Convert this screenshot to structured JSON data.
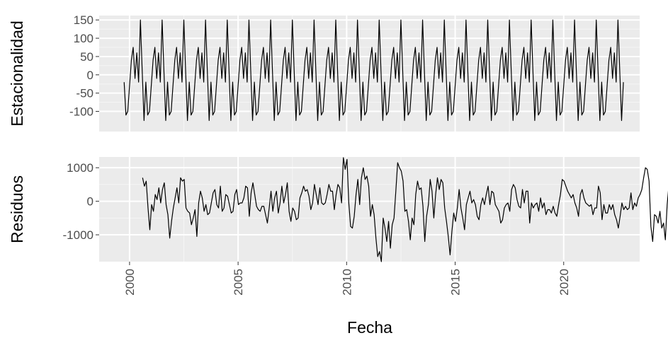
{
  "chart_data": {
    "type": "line",
    "xlabel": "Fecha",
    "xlim": [
      1998.6,
      2023.5
    ],
    "x_ticks": [
      2000,
      2005,
      2010,
      2015,
      2020
    ],
    "x_tick_labels": [
      "2000",
      "2005",
      "2010",
      "2015",
      "2020"
    ],
    "x_start": 1999.75,
    "x_step": 0.0833333,
    "grid": true,
    "panels": [
      {
        "ylabel": "Estacionalidad",
        "ylim": [
          -155,
          162
        ],
        "y_ticks": [
          150,
          100,
          50,
          0,
          -50,
          -100
        ],
        "y_tick_labels": [
          "150",
          "100",
          "50",
          "0",
          "-50",
          "-100"
        ],
        "seasonal_pattern": [
          -20,
          -110,
          -100,
          -30,
          40,
          75,
          -10,
          60,
          -20,
          150,
          10,
          -125
        ],
        "years": 23.1
      },
      {
        "ylabel": "Residuos",
        "ylim": [
          -1800,
          1320
        ],
        "y_ticks": [
          1000,
          0,
          -1000
        ],
        "y_tick_labels": [
          "1000",
          "0",
          "-1000"
        ],
        "x_start": 2000.6,
        "values": [
          700,
          450,
          600,
          -200,
          -850,
          -100,
          -300,
          200,
          50,
          400,
          -50,
          350,
          550,
          -100,
          -400,
          -1100,
          -600,
          -200,
          100,
          400,
          -50,
          700,
          600,
          650,
          -200,
          -300,
          -350,
          -700,
          -500,
          -250,
          -1050,
          -50,
          300,
          100,
          -300,
          -100,
          -400,
          -350,
          -50,
          250,
          350,
          -100,
          -200,
          450,
          -300,
          -200,
          200,
          150,
          -100,
          -350,
          -300,
          200,
          350,
          -100,
          -50,
          -50,
          100,
          450,
          400,
          -450,
          250,
          550,
          200,
          -150,
          -250,
          -300,
          -150,
          -150,
          -400,
          -650,
          -200,
          300,
          -300,
          100,
          300,
          -350,
          -50,
          450,
          -50,
          200,
          550,
          -300,
          -600,
          -200,
          -300,
          -550,
          -500,
          100,
          250,
          450,
          300,
          350,
          150,
          -250,
          -50,
          500,
          200,
          -100,
          400,
          -50,
          -100,
          -50,
          200,
          500,
          300,
          300,
          -250,
          200,
          500,
          400,
          -50,
          1300,
          950,
          1250,
          -50,
          -750,
          -800,
          -450,
          200,
          650,
          -100,
          700,
          1000,
          650,
          750,
          450,
          -450,
          -100,
          -400,
          -1100,
          -1650,
          -1500,
          -1800,
          -500,
          -800,
          -1200,
          -600,
          -1400,
          -700,
          -500,
          300,
          1150,
          1000,
          900,
          600,
          -300,
          -250,
          -600,
          -1150,
          -500,
          -700,
          200,
          600,
          350,
          400,
          -150,
          -1200,
          -450,
          -100,
          650,
          300,
          -500,
          200,
          700,
          350,
          650,
          550,
          -200,
          -600,
          -1050,
          -1600,
          -900,
          -350,
          -600,
          -200,
          350,
          -200,
          -500,
          -850,
          -100,
          100,
          300,
          -50,
          50,
          -100,
          -450,
          -550,
          -100,
          100,
          -100,
          200,
          450,
          -100,
          300,
          250,
          -100,
          -200,
          -300,
          -650,
          -550,
          -200,
          -100,
          -50,
          -300,
          350,
          500,
          400,
          50,
          -150,
          -200,
          350,
          -50,
          300,
          300,
          -650,
          -50,
          -200,
          -100,
          -50,
          -300,
          100,
          -200,
          -50,
          -400,
          -250,
          -250,
          -350,
          -150,
          -350,
          -450,
          -100,
          200,
          650,
          600,
          450,
          300,
          200,
          100,
          200,
          -50,
          -200,
          -450,
          200,
          350,
          100,
          -50,
          -100,
          -150,
          -100,
          -400,
          -200,
          -200,
          450,
          250,
          -550,
          -100,
          -350,
          -350,
          -100,
          -250,
          -100,
          -400,
          -550,
          -800,
          -450,
          -50,
          -250,
          -150,
          -250,
          -200,
          250,
          -250,
          -50,
          -150,
          100,
          200,
          350,
          700,
          1000,
          950,
          600,
          -750,
          -1200,
          -400,
          -450,
          -650,
          -300,
          -800,
          -650,
          -1150,
          -100,
          500,
          -50,
          300,
          300,
          -400,
          -50,
          400,
          200,
          500,
          400,
          150,
          -50,
          -150,
          -250,
          100,
          300,
          -50,
          100,
          -200,
          -400,
          -100,
          -100,
          0,
          -100,
          100,
          200,
          500,
          0
        ]
      }
    ]
  }
}
